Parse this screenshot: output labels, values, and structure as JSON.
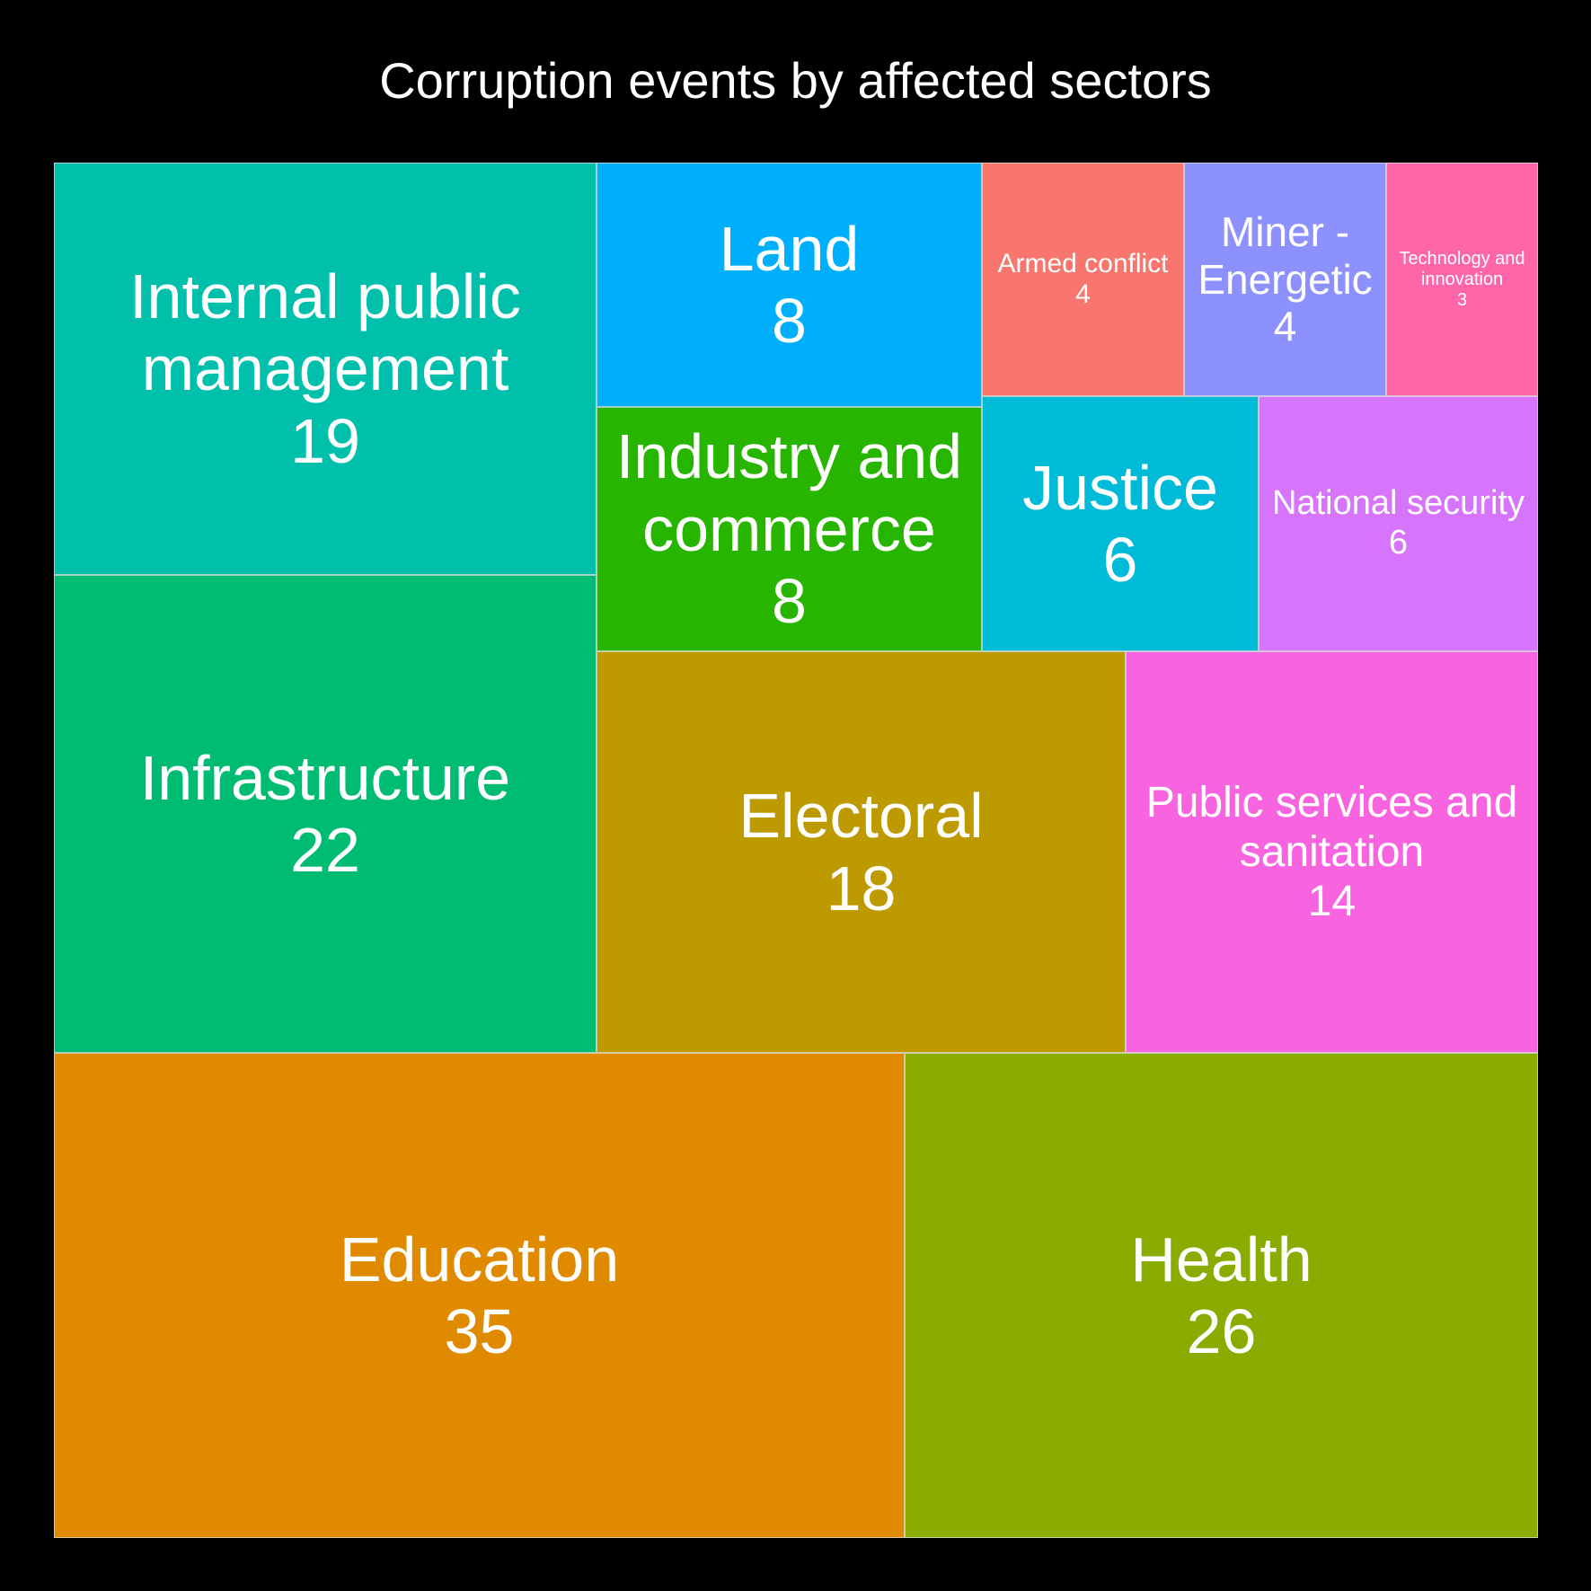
{
  "chart_data": {
    "type": "treemap",
    "title": "Corruption events by affected sectors",
    "items": [
      {
        "label": "Education",
        "value": 35,
        "color": "#E08A00"
      },
      {
        "label": "Health",
        "value": 26,
        "color": "#8AAC00"
      },
      {
        "label": "Infrastructure",
        "value": 22,
        "color": "#00BC72"
      },
      {
        "label": "Internal public management",
        "value": 19,
        "color": "#00BFAB"
      },
      {
        "label": "Electoral",
        "value": 18,
        "color": "#BC9A00"
      },
      {
        "label": "Public services and sanitation",
        "value": 14,
        "color": "#F864DF"
      },
      {
        "label": "Land",
        "value": 8,
        "color": "#00AFFC"
      },
      {
        "label": "Industry and commerce",
        "value": 8,
        "color": "#27B500"
      },
      {
        "label": "Justice",
        "value": 6,
        "color": "#00BBD8"
      },
      {
        "label": "National security",
        "value": 6,
        "color": "#D674FC"
      },
      {
        "label": "Armed conflict",
        "value": 4,
        "color": "#F8766D"
      },
      {
        "label": "Miner - Energetic",
        "value": 4,
        "color": "#8C91FE"
      },
      {
        "label": "Technology and innovation",
        "value": 3,
        "color": "#FF66AA"
      }
    ]
  }
}
